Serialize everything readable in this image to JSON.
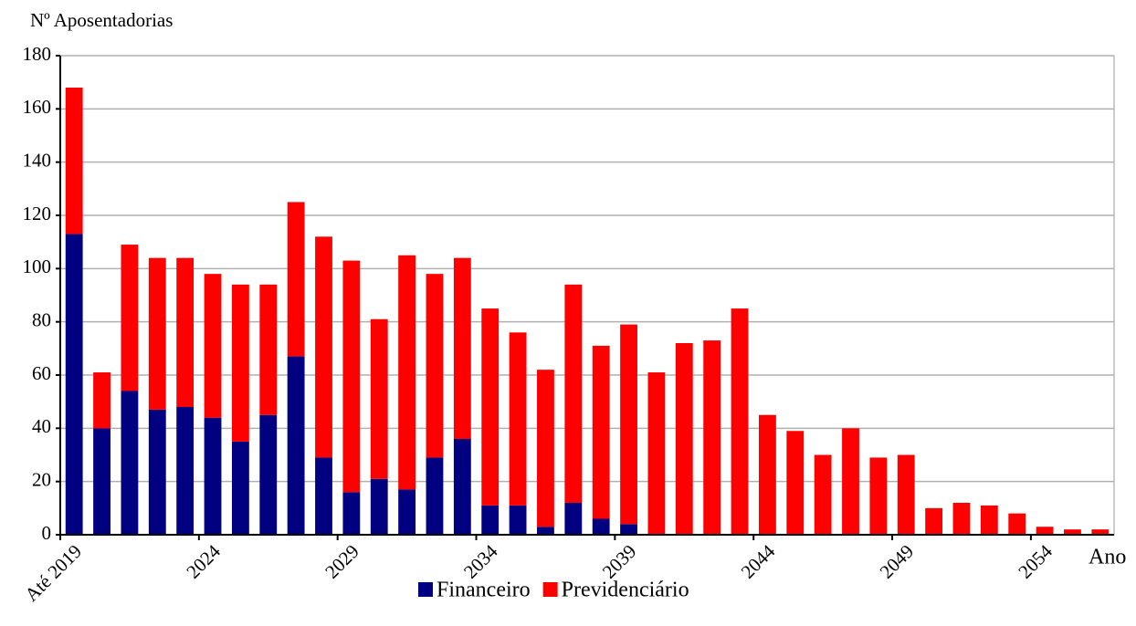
{
  "chart_data": {
    "type": "stacked_bar",
    "y_label": "Nº Aposentadorias",
    "x_label": "Ano",
    "categories": [
      "Até 2019",
      null,
      null,
      null,
      null,
      "2024",
      null,
      null,
      null,
      null,
      "2029",
      null,
      null,
      null,
      null,
      "2034",
      null,
      null,
      null,
      null,
      "2039",
      null,
      null,
      null,
      null,
      "2044",
      null,
      null,
      null,
      null,
      "2049",
      null,
      null,
      null,
      null,
      "2054",
      null,
      null
    ],
    "series": [
      {
        "name": "Financeiro",
        "color": "#000080",
        "values": [
          113,
          40,
          54,
          47,
          48,
          44,
          35,
          45,
          67,
          29,
          16,
          21,
          17,
          29,
          36,
          11,
          11,
          3,
          12,
          6,
          4,
          0,
          0,
          0,
          0,
          0,
          0,
          0,
          0,
          0,
          0,
          0,
          0,
          0,
          0,
          0,
          0,
          0
        ]
      },
      {
        "name": "Previdenciário",
        "color": "#ff0000",
        "values": [
          55,
          21,
          55,
          57,
          56,
          54,
          59,
          49,
          58,
          83,
          87,
          60,
          88,
          69,
          68,
          74,
          65,
          59,
          82,
          65,
          75,
          61,
          72,
          73,
          85,
          45,
          39,
          30,
          40,
          29,
          30,
          10,
          12,
          11,
          8,
          3,
          2,
          2
        ]
      }
    ],
    "ylim": [
      0,
      180
    ],
    "yticks": [
      0,
      20,
      40,
      60,
      80,
      100,
      120,
      140,
      160,
      180
    ],
    "grid": true
  }
}
